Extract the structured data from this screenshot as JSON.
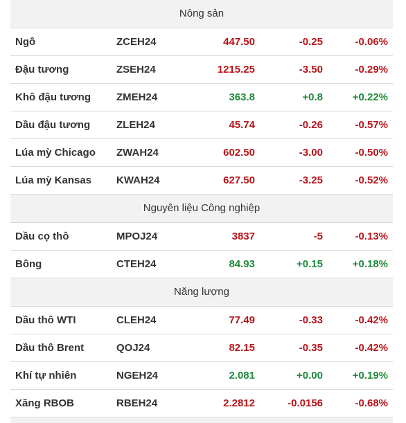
{
  "colors": {
    "down": "#b8141a",
    "up": "#1e8a3a",
    "header_bg": "#f2f2f2",
    "divider": "#d9d9d9"
  },
  "sections": [
    {
      "title": "Nông sản",
      "rows": [
        {
          "name": "Ngô",
          "code": "ZCEH24",
          "price": "447.50",
          "change": "-0.25",
          "pct": "-0.06%",
          "trend": "down"
        },
        {
          "name": "Đậu tương",
          "code": "ZSEH24",
          "price": "1215.25",
          "change": "-3.50",
          "pct": "-0.29%",
          "trend": "down"
        },
        {
          "name": "Khô đậu tương",
          "code": "ZMEH24",
          "price": "363.8",
          "change": "+0.8",
          "pct": "+0.22%",
          "trend": "up"
        },
        {
          "name": "Dầu đậu tương",
          "code": "ZLEH24",
          "price": "45.74",
          "change": "-0.26",
          "pct": "-0.57%",
          "trend": "down"
        },
        {
          "name": "Lúa mỳ Chicago",
          "code": "ZWAH24",
          "price": "602.50",
          "change": "-3.00",
          "pct": "-0.50%",
          "trend": "down"
        },
        {
          "name": "Lúa mỳ Kansas",
          "code": "KWAH24",
          "price": "627.50",
          "change": "-3.25",
          "pct": "-0.52%",
          "trend": "down"
        }
      ]
    },
    {
      "title": "Nguyên liệu Công nghiệp",
      "rows": [
        {
          "name": "Dầu cọ thô",
          "code": "MPOJ24",
          "price": "3837",
          "change": "-5",
          "pct": "-0.13%",
          "trend": "down"
        },
        {
          "name": "Bông",
          "code": "CTEH24",
          "price": "84.93",
          "change": "+0.15",
          "pct": "+0.18%",
          "trend": "up"
        }
      ]
    },
    {
      "title": "Năng lượng",
      "rows": [
        {
          "name": "Dầu thô WTI",
          "code": "CLEH24",
          "price": "77.49",
          "change": "-0.33",
          "pct": "-0.42%",
          "trend": "down"
        },
        {
          "name": "Dầu thô Brent",
          "code": "QOJ24",
          "price": "82.15",
          "change": "-0.35",
          "pct": "-0.42%",
          "trend": "down"
        },
        {
          "name": "Khí tự nhiên",
          "code": "NGEH24",
          "price": "2.081",
          "change": "+0.00",
          "pct": "+0.19%",
          "trend": "up"
        },
        {
          "name": "Xăng RBOB",
          "code": "RBEH24",
          "price": "2.2812",
          "change": "-0.0156",
          "pct": "-0.68%",
          "trend": "down"
        }
      ]
    }
  ]
}
